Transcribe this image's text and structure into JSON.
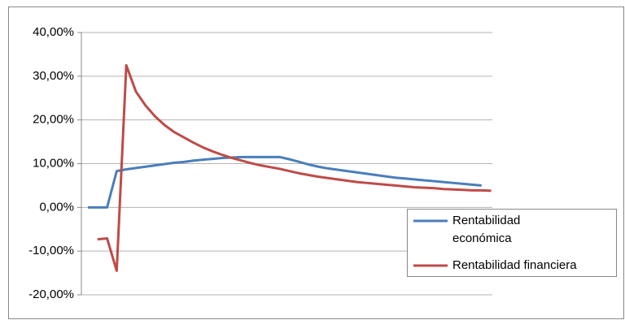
{
  "chart_data": {
    "type": "line",
    "categories": [
      null,
      null,
      null,
      null,
      null,
      null,
      null,
      null,
      null,
      null,
      null,
      null,
      null,
      null,
      null,
      null,
      null,
      null,
      null,
      null,
      null,
      null,
      null,
      null,
      null,
      null,
      null,
      null,
      null,
      null,
      null,
      null,
      null,
      null,
      null,
      null,
      null,
      null,
      null,
      null,
      null,
      null,
      null
    ],
    "series": [
      {
        "name": "Rentabilidad económica",
        "color": "#4a7ebb",
        "values": [
          0,
          0,
          0,
          8.3,
          8.7,
          9.0,
          9.3,
          9.6,
          9.9,
          10.2,
          10.4,
          10.7,
          10.9,
          11.1,
          11.3,
          11.4,
          11.5,
          11.5,
          11.5,
          11.5,
          11.5,
          11.0,
          10.4,
          9.8,
          9.3,
          8.9,
          8.6,
          8.3,
          8.0,
          7.7,
          7.4,
          7.1,
          6.8,
          6.6,
          6.4,
          6.2,
          6.0,
          5.8,
          5.6,
          5.4,
          5.2,
          5.0,
          null
        ]
      },
      {
        "name": "Rentabilidad financiera",
        "color": "#be4b48",
        "values": [
          null,
          -7.3,
          -7.1,
          -14.5,
          32.5,
          26.5,
          23.3,
          20.8,
          18.8,
          17.2,
          16.0,
          14.8,
          13.7,
          12.8,
          12.0,
          11.3,
          10.7,
          10.1,
          9.6,
          9.2,
          8.8,
          8.3,
          7.8,
          7.4,
          7.0,
          6.7,
          6.4,
          6.1,
          5.8,
          5.6,
          5.4,
          5.2,
          5.0,
          4.8,
          4.6,
          4.5,
          4.4,
          4.2,
          4.1,
          4.0,
          3.9,
          3.9,
          3.8
        ]
      }
    ],
    "ylim": [
      -20,
      40
    ],
    "yticks": [
      {
        "value": -20,
        "label": "-20,00%"
      },
      {
        "value": -10,
        "label": "-10,00%"
      },
      {
        "value": 0,
        "label": "0,00%"
      },
      {
        "value": 10,
        "label": "10,00%"
      },
      {
        "value": 20,
        "label": "20,00%"
      },
      {
        "value": 30,
        "label": "30,00%"
      },
      {
        "value": 40,
        "label": "40,00%"
      }
    ],
    "grid": true
  }
}
